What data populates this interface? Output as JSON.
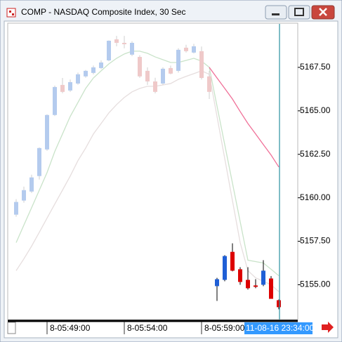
{
  "window": {
    "title": "COMP - NASDAQ Composite Index, 30 Sec"
  },
  "chart_data": {
    "type": "candlestick",
    "categories": [
      null,
      null,
      null,
      null,
      "8-05:49:00",
      null,
      null,
      null,
      null,
      null,
      null,
      null,
      null,
      null,
      "8-05:54:00",
      null,
      null,
      null,
      null,
      null,
      null,
      null,
      null,
      null,
      "8-05:59:00",
      null,
      null,
      null,
      null,
      null,
      null,
      null,
      null,
      null,
      null
    ],
    "cursor_label": "11-08-16 23:34:00",
    "ylim": [
      5153,
      5170
    ],
    "yticks": [
      {
        "value": 5155,
        "label": "5155.00"
      },
      {
        "value": 5157.5,
        "label": "5157.50"
      },
      {
        "value": 5160,
        "label": "5160.00"
      },
      {
        "value": 5162.5,
        "label": "5162.50"
      },
      {
        "value": 5165,
        "label": "5165.00"
      },
      {
        "value": 5167.5,
        "label": "5167.50"
      }
    ],
    "series": [
      {
        "up_color": "#b4cbee",
        "down_color": "#efc9c9",
        "open": [
          5159.03,
          5159.84,
          5160.36,
          5161.25,
          5162.78,
          5164.76,
          5166.49,
          5166.17,
          5166.57,
          5166.98,
          5167.18,
          5167.46,
          5167.9,
          5169.11,
          5168.91,
          5168.23,
          5168.1,
          5167.3,
          5166.69,
          5166.57,
          5167.46,
          5167.3,
          5168.63,
          5168.35,
          5168.43,
          5166.98,
          null,
          null,
          null,
          null,
          null,
          null,
          null,
          null,
          null
        ],
        "high": [
          5159.92,
          5160.64,
          5161.33,
          5162.9,
          5164.8,
          5166.45,
          5166.89,
          5166.8,
          5167.2,
          5167.35,
          5167.6,
          5167.9,
          5169.05,
          5169.31,
          5169.31,
          5169.0,
          5168.2,
          5167.5,
          5166.9,
          5167.5,
          5167.6,
          5168.6,
          5168.8,
          5168.85,
          5168.7,
          5167.3,
          null,
          null,
          null,
          null,
          null,
          null,
          null,
          null,
          null
        ],
        "low": [
          5158.91,
          5159.72,
          5160.28,
          5161.05,
          5162.7,
          5164.7,
          5166.01,
          5166.09,
          5166.5,
          5166.9,
          5167.1,
          5167.4,
          5167.85,
          5168.71,
          5168.59,
          5168.15,
          5166.9,
          5166.49,
          5166.0,
          5166.5,
          5167.1,
          5167.2,
          5168.35,
          5168.3,
          5166.8,
          5165.68,
          null,
          null,
          null,
          null,
          null,
          null,
          null,
          null,
          null
        ],
        "close": [
          5159.76,
          5160.44,
          5161.17,
          5162.86,
          5164.76,
          5166.37,
          5166.09,
          5166.65,
          5167.1,
          5167.3,
          5167.5,
          5167.78,
          5169.03,
          5168.91,
          5168.83,
          5168.91,
          5166.98,
          5166.69,
          5166.09,
          5167.42,
          5167.14,
          5168.51,
          5168.43,
          5168.71,
          5166.89,
          5166.09,
          null,
          null,
          null,
          null,
          null,
          null,
          null,
          null,
          null
        ]
      },
      {
        "up_color": "#1f5fd6",
        "down_color": "#dd0000",
        "open": [
          null,
          null,
          null,
          null,
          null,
          null,
          null,
          null,
          null,
          null,
          null,
          null,
          null,
          null,
          null,
          null,
          null,
          null,
          null,
          null,
          null,
          null,
          null,
          null,
          null,
          null,
          5154.92,
          5155.28,
          5156.89,
          5155.89,
          5155.28,
          5154.96,
          5155.0,
          5155.36,
          5154.11
        ],
        "high": [
          null,
          null,
          null,
          null,
          null,
          null,
          null,
          null,
          null,
          null,
          null,
          null,
          null,
          null,
          null,
          null,
          null,
          null,
          null,
          null,
          null,
          null,
          null,
          null,
          null,
          null,
          5155.4,
          5156.7,
          5157.38,
          5156.01,
          5156.01,
          5155.32,
          5156.41,
          5155.5,
          5154.15
        ],
        "low": [
          null,
          null,
          null,
          null,
          null,
          null,
          null,
          null,
          null,
          null,
          null,
          null,
          null,
          null,
          null,
          null,
          null,
          null,
          null,
          null,
          null,
          null,
          null,
          null,
          null,
          null,
          5154.07,
          5155.2,
          5155.77,
          5155.0,
          5154.72,
          5154.8,
          5154.92,
          5154.19,
          5153.59
        ],
        "close": [
          null,
          null,
          null,
          null,
          null,
          null,
          null,
          null,
          null,
          null,
          null,
          null,
          null,
          null,
          null,
          null,
          null,
          null,
          null,
          null,
          null,
          null,
          null,
          null,
          null,
          null,
          5155.32,
          5156.65,
          5155.81,
          5155.16,
          5154.8,
          5154.88,
          5155.81,
          5154.19,
          5153.71
        ]
      }
    ],
    "lines": [
      {
        "color": "#c9e3c9",
        "values": [
          5157.42,
          5158.43,
          5159.43,
          5160.44,
          5161.45,
          5162.66,
          5163.67,
          5164.68,
          5165.48,
          5166.29,
          5166.89,
          5167.3,
          5167.7,
          5168.02,
          5168.27,
          5168.43,
          5168.43,
          5168.31,
          5168.1,
          5167.94,
          5167.78,
          5167.78,
          5167.9,
          5168.02,
          5167.86,
          5167.5,
          5165.28,
          5163.06,
          5160.85,
          5158.63,
          5156.41,
          5156.33,
          5156.25,
          5155.89,
          5155.52
        ]
      },
      {
        "color": "#e6dede",
        "values": [
          5155.81,
          5156.49,
          5157.22,
          5158.02,
          5158.83,
          5159.64,
          5160.44,
          5161.25,
          5162.14,
          5162.86,
          5163.67,
          5164.27,
          5164.88,
          5165.36,
          5165.77,
          5166.09,
          5166.29,
          5166.41,
          5166.41,
          5166.49,
          5166.57,
          5166.81,
          5166.98,
          5167.14,
          5167.3,
          5167.1,
          5164.68,
          5162.26,
          5159.84,
          5157.42,
          5155.81,
          5155.4,
          5155.2,
          5155.0,
          5154.6
        ]
      },
      {
        "color": "#f07098",
        "values": [
          null,
          null,
          null,
          null,
          null,
          null,
          null,
          null,
          null,
          null,
          null,
          null,
          null,
          null,
          null,
          null,
          null,
          null,
          null,
          null,
          null,
          null,
          null,
          null,
          null,
          5167.5,
          5166.89,
          5166.29,
          5165.68,
          5164.96,
          5164.27,
          5163.67,
          5163.06,
          5162.46,
          5161.77
        ]
      }
    ],
    "cursor_color": "#2a8fa0"
  }
}
